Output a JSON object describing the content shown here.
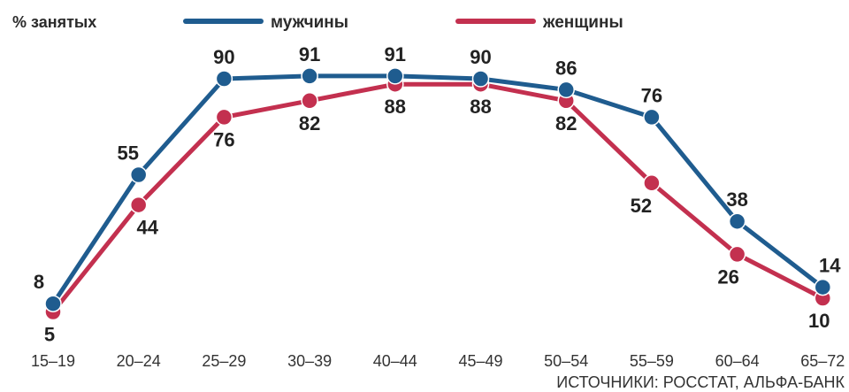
{
  "chart_data": {
    "type": "line",
    "ylabel": "% занятых",
    "categories": [
      "15–19",
      "20–24",
      "25–29",
      "30–39",
      "40–44",
      "45–49",
      "50–54",
      "55–59",
      "60–64",
      "65–72"
    ],
    "series": [
      {
        "name": "мужчины",
        "color": "#1f5c8f",
        "values": [
          8,
          55,
          90,
          91,
          91,
          90,
          86,
          76,
          38,
          14
        ]
      },
      {
        "name": "женщины",
        "color": "#c3304f",
        "values": [
          5,
          44,
          76,
          82,
          88,
          88,
          82,
          52,
          26,
          10
        ]
      }
    ],
    "ylim": [
      0,
      100
    ],
    "grid": false,
    "legend": "top"
  },
  "source": "ИСТОЧНИКИ: РОССТАТ, АЛЬФА-БАНК"
}
